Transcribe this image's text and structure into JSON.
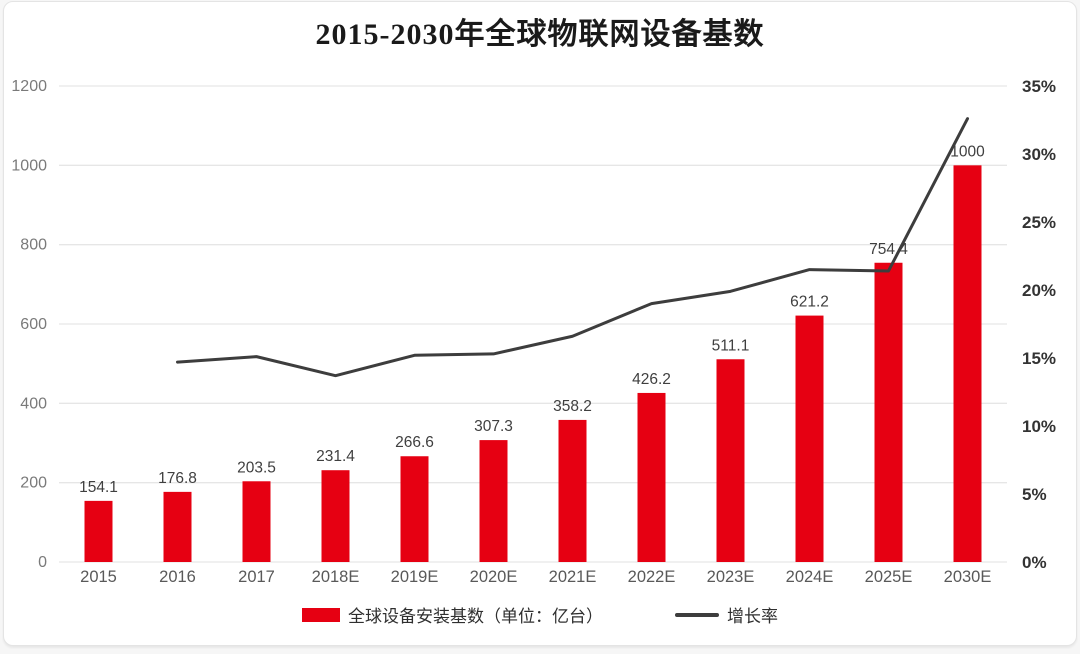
{
  "chart_data": {
    "type": "bar",
    "title": "2015-2030年全球物联网设备基数",
    "categories": [
      "2015",
      "2016",
      "2017",
      "2018E",
      "2019E",
      "2020E",
      "2021E",
      "2022E",
      "2023E",
      "2024E",
      "2025E",
      "2030E"
    ],
    "series": [
      {
        "name": "全球设备安装基数（单位：亿台）",
        "type": "bar",
        "axis": "left",
        "values": [
          154.1,
          176.8,
          203.5,
          231.4,
          266.6,
          307.3,
          358.2,
          426.2,
          511.1,
          621.2,
          754.4,
          1000
        ],
        "labels": [
          "154.1",
          "176.8",
          "203.5",
          "231.4",
          "266.6",
          "307.3",
          "358.2",
          "426.2",
          "511.1",
          "621.2",
          "754.4",
          "1000"
        ],
        "color": "#e60012"
      },
      {
        "name": "增长率",
        "type": "line",
        "axis": "right",
        "values": [
          null,
          14.7,
          15.1,
          13.7,
          15.2,
          15.3,
          16.6,
          19.0,
          19.9,
          21.5,
          21.4,
          32.6
        ],
        "color": "#3d3d3d"
      }
    ],
    "left_axis": {
      "min": 0,
      "max": 1200,
      "step": 200,
      "ticks": [
        "0",
        "200",
        "400",
        "600",
        "800",
        "1000",
        "1200"
      ]
    },
    "right_axis": {
      "min": 0,
      "max": 35,
      "step": 5,
      "ticks": [
        "0%",
        "5%",
        "10%",
        "15%",
        "20%",
        "25%",
        "30%",
        "35%"
      ]
    },
    "grid": true,
    "legend_position": "bottom",
    "colors": {
      "grid": "#e6e6e6",
      "left_axis_text": "#7a7a7a",
      "right_axis_text": "#333333",
      "category_text": "#595959",
      "value_label": "#3f3f3f",
      "title_text": "#1a1a1a"
    }
  }
}
